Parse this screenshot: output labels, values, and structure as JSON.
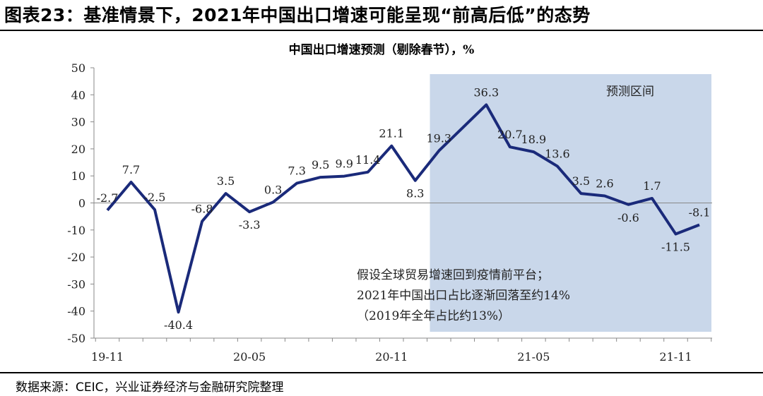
{
  "figure_title": "图表23：基准情景下，2021年中国出口增速可能呈现“前高后低”的态势",
  "source": "数据来源：CEIC，兴业证券经济与金融研究院整理",
  "colors": {
    "line": "#1a2a7a",
    "shade": "#c9d7ea",
    "axis": "#888888"
  },
  "chart_data": {
    "type": "line",
    "title": "中国出口增速预测（剔除春节），%",
    "xlabel": "",
    "ylabel": "",
    "ylim": [
      -50,
      50
    ],
    "yticks": [
      50,
      40,
      30,
      20,
      10,
      0,
      -10,
      -20,
      -30,
      -40,
      -50
    ],
    "x": [
      "19-11",
      "19-12",
      "20-01",
      "20-02",
      "20-03",
      "20-04",
      "20-05",
      "20-06",
      "20-07",
      "20-08",
      "20-09",
      "20-10",
      "20-11",
      "20-12",
      "21-01",
      "21-02",
      "21-03",
      "21-04",
      "21-05",
      "21-06",
      "21-07",
      "21-08",
      "21-09",
      "21-10",
      "21-11",
      "21-12"
    ],
    "xtick_labels": [
      "19-11",
      "20-05",
      "20-11",
      "21-05",
      "21-11"
    ],
    "series": [
      {
        "values": [
          -2.7,
          7.7,
          -2.5,
          -40.4,
          -6.8,
          3.5,
          -3.3,
          0.3,
          7.3,
          9.5,
          9.9,
          11.4,
          21.1,
          8.3,
          19.3,
          27.8,
          36.3,
          20.7,
          18.9,
          13.6,
          3.5,
          2.6,
          -0.6,
          1.7,
          -11.5,
          -8.1
        ],
        "labels": [
          "-2.7",
          "7.7",
          "-2.5",
          "-40.4",
          "-6.8",
          "3.5",
          "-3.3",
          "0.3",
          "7.3",
          "9.5",
          "9.9",
          "11.4",
          "21.1",
          "8.3",
          "19.3",
          "",
          "36.3",
          "20.7",
          "18.9",
          "13.6",
          "3.5",
          "2.6",
          "-0.6",
          "1.7",
          "-11.5",
          "-8.1"
        ]
      }
    ],
    "shaded_region": {
      "label": "预测区间",
      "from": "21-01",
      "to": "21-12"
    },
    "annotation": [
      "假设全球贸易增速回到疫情前平台；",
      "2021年中国出口占比逐渐回落至约14%",
      "（2019年全年占比约13%）"
    ],
    "grid": false,
    "legend": "none"
  }
}
